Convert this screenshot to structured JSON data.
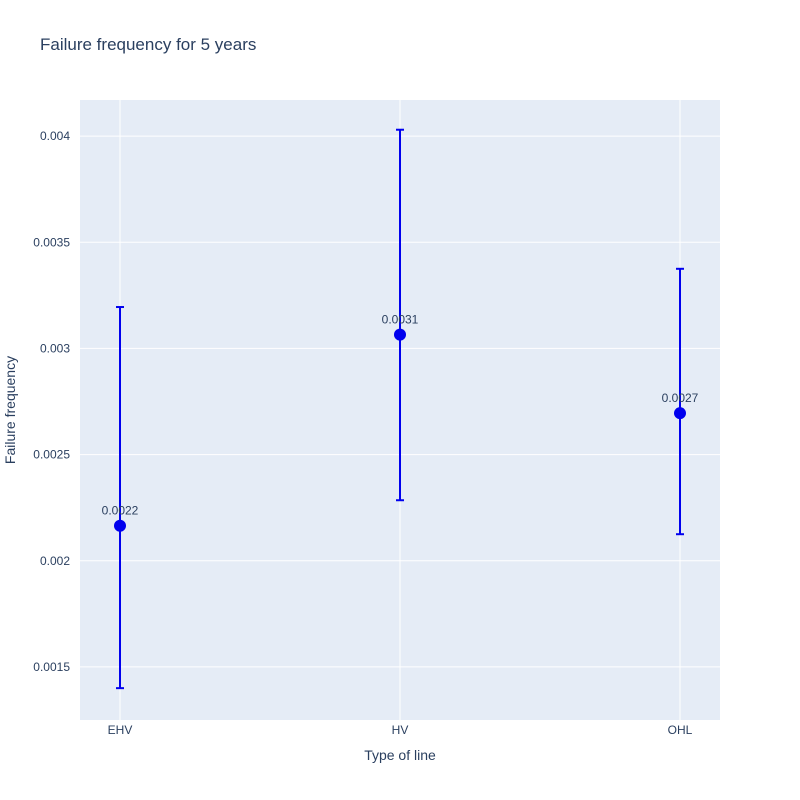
{
  "chart_data": {
    "type": "scatter",
    "title": "Failure frequency for 5 years",
    "xlabel": "Type of line",
    "ylabel": "Failure frequency",
    "categories": [
      "EHV",
      "HV",
      "OHL"
    ],
    "series": [
      {
        "values": [
          0.002165,
          0.003065,
          0.002695
        ],
        "error_upper": [
          0.003195,
          0.00403,
          0.003375
        ],
        "error_lower": [
          0.0014,
          0.002285,
          0.002125
        ],
        "data_labels": [
          "0.0022",
          "0.0031",
          "0.0027"
        ],
        "color": "#0000ee"
      }
    ],
    "ylim": [
      0.00125,
      0.00417
    ],
    "yticks": [
      0.0015,
      0.002,
      0.0025,
      0.003,
      0.0035,
      0.004
    ],
    "ytick_labels": [
      "0.0015",
      "0.002",
      "0.0025",
      "0.003",
      "0.0035",
      "0.004"
    ],
    "grid": true,
    "plot_background": "#e5ecf6",
    "grid_color": "#ffffff"
  }
}
